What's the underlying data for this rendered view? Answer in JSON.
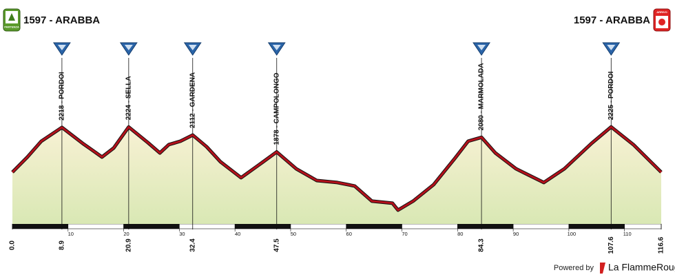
{
  "chart_data": {
    "type": "profile",
    "start": {
      "label": "1597 - ARABBA",
      "badge": "PARTENZA"
    },
    "finish": {
      "label": "1597 - ARABBA",
      "badge": "ARRIVO"
    },
    "x": [
      0,
      2.7,
      5.2,
      8.9,
      12.6,
      16.1,
      18.2,
      20.9,
      24.4,
      26.5,
      28.1,
      30.2,
      32.4,
      34.9,
      37.4,
      41.1,
      44.2,
      47.5,
      51.0,
      54.7,
      58.4,
      61.5,
      64.6,
      68.3,
      69.3,
      72.0,
      75.7,
      79.5,
      81.9,
      84.3,
      86.8,
      90.5,
      95.5,
      99.2,
      104.1,
      107.6,
      111.6,
      116.6
    ],
    "values": [
      1597,
      1807,
      2027,
      2218,
      1998,
      1807,
      1931,
      2224,
      2004,
      1864,
      1979,
      2027,
      2112,
      1950,
      1740,
      1521,
      1693,
      1878,
      1645,
      1482,
      1454,
      1406,
      1196,
      1167,
      1072,
      1196,
      1425,
      1788,
      2027,
      2080,
      1864,
      1645,
      1454,
      1645,
      1998,
      2225,
      1979,
      1597
    ],
    "line_color": "#b3111b",
    "fill_top": "#f8f1d4",
    "fill_bottom": "#d9e8b4",
    "xlim": [
      0,
      116.6
    ],
    "ylim": [
      880,
      2450
    ],
    "xticks": [
      10,
      20,
      30,
      40,
      50,
      60,
      70,
      80,
      90,
      100,
      110
    ],
    "distance_labels": [
      {
        "value": 0,
        "label": "0.0"
      },
      116.6
    ],
    "climbs": [
      {
        "label": "2218 - PORDOI",
        "km": 8.9
      },
      {
        "label": "2224 - SELLA",
        "km": 20.9
      },
      {
        "label": "2112 - GARDENA",
        "km": 32.4
      },
      {
        "label": "1878 - CAMPOLONGO",
        "km": 47.5
      },
      {
        "label": "2080 - MARMOLADA",
        "km": 84.3
      },
      {
        "label": "2225 - PORDOI",
        "km": 107.6
      }
    ],
    "footer": {
      "powered": "Powered by",
      "brand": "La FlammeRouge"
    }
  }
}
